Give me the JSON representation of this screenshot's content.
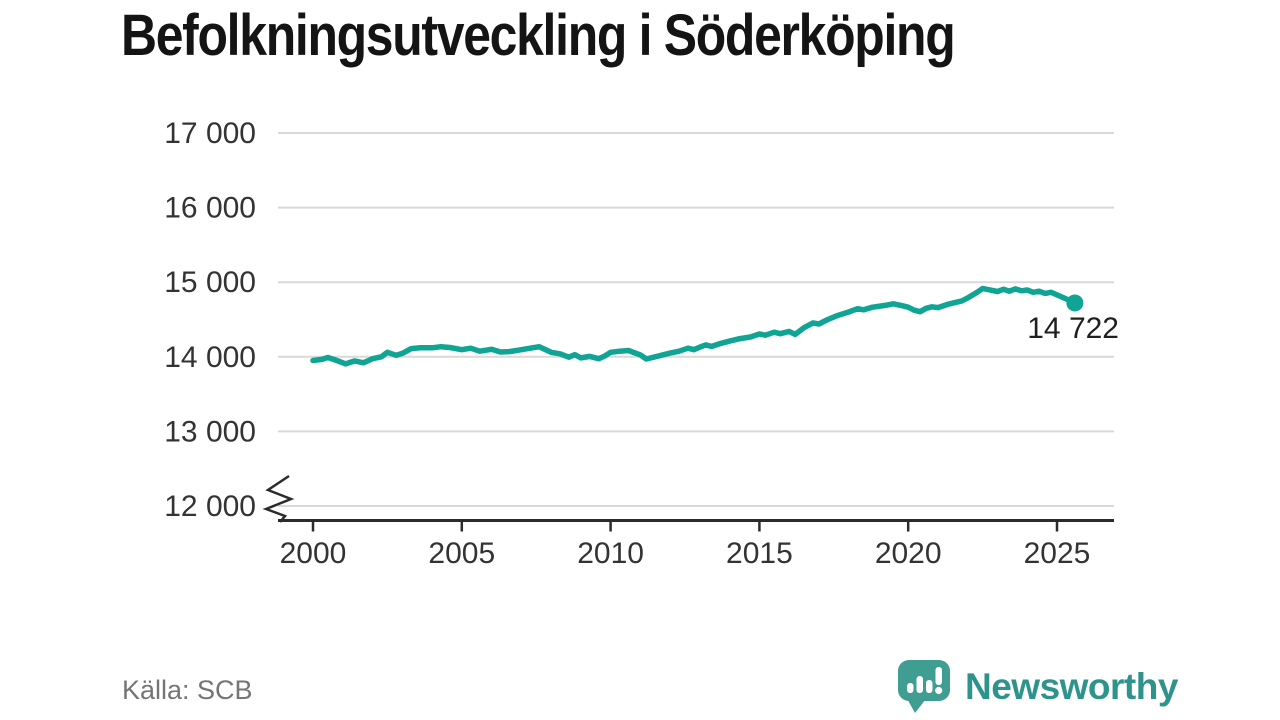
{
  "chart_data": {
    "type": "line",
    "title": "Befolkningsutveckling i Söderköping",
    "xlabel": "",
    "ylabel": "",
    "ylim": [
      12000,
      17000
    ],
    "axis_break_at_bottom": true,
    "grid": true,
    "y_ticks": [
      {
        "value": 17000,
        "label": "17 000"
      },
      {
        "value": 16000,
        "label": "16 000"
      },
      {
        "value": 15000,
        "label": "15 000"
      },
      {
        "value": 14000,
        "label": "14 000"
      },
      {
        "value": 13000,
        "label": "13 000"
      },
      {
        "value": 12000,
        "label": "12 000"
      }
    ],
    "x_ticks": [
      {
        "value": 2000,
        "label": "2000"
      },
      {
        "value": 2005,
        "label": "2005"
      },
      {
        "value": 2010,
        "label": "2010"
      },
      {
        "value": 2015,
        "label": "2015"
      },
      {
        "value": 2020,
        "label": "2020"
      },
      {
        "value": 2025,
        "label": "2025"
      }
    ],
    "x": [
      2000.0,
      2000.3,
      2000.5,
      2000.8,
      2001.1,
      2001.4,
      2001.7,
      2002.0,
      2002.3,
      2002.5,
      2002.8,
      2003.0,
      2003.3,
      2003.6,
      2004.0,
      2004.3,
      2004.6,
      2005.0,
      2005.3,
      2005.6,
      2006.0,
      2006.3,
      2006.6,
      2007.0,
      2007.3,
      2007.6,
      2008.0,
      2008.3,
      2008.6,
      2008.8,
      2009.0,
      2009.3,
      2009.6,
      2009.8,
      2010.0,
      2010.3,
      2010.6,
      2011.0,
      2011.2,
      2011.5,
      2011.8,
      2012.0,
      2012.3,
      2012.6,
      2012.8,
      2013.0,
      2013.2,
      2013.4,
      2013.7,
      2014.0,
      2014.3,
      2014.7,
      2015.0,
      2015.2,
      2015.5,
      2015.7,
      2016.0,
      2016.2,
      2016.5,
      2016.8,
      2017.0,
      2017.3,
      2017.6,
      2018.0,
      2018.3,
      2018.5,
      2018.8,
      2019.0,
      2019.3,
      2019.5,
      2019.8,
      2020.0,
      2020.2,
      2020.4,
      2020.6,
      2020.8,
      2021.0,
      2021.3,
      2021.5,
      2021.8,
      2022.0,
      2022.3,
      2022.5,
      2022.7,
      2023.0,
      2023.2,
      2023.4,
      2023.6,
      2023.8,
      2024.0,
      2024.2,
      2024.4,
      2024.6,
      2024.8,
      2025.0,
      2025.2,
      2025.4,
      2025.6
    ],
    "values": [
      13950,
      13965,
      13990,
      13950,
      13905,
      13945,
      13920,
      13975,
      14000,
      14060,
      14020,
      14045,
      14110,
      14120,
      14120,
      14135,
      14125,
      14095,
      14115,
      14075,
      14100,
      14065,
      14070,
      14095,
      14115,
      14135,
      14060,
      14040,
      13995,
      14030,
      13985,
      14005,
      13975,
      14010,
      14060,
      14075,
      14085,
      14025,
      13970,
      14000,
      14030,
      14050,
      14075,
      14115,
      14095,
      14130,
      14160,
      14140,
      14180,
      14210,
      14240,
      14265,
      14305,
      14290,
      14330,
      14310,
      14340,
      14300,
      14390,
      14455,
      14440,
      14500,
      14550,
      14600,
      14645,
      14630,
      14665,
      14675,
      14695,
      14710,
      14685,
      14665,
      14625,
      14605,
      14650,
      14670,
      14660,
      14700,
      14720,
      14750,
      14790,
      14860,
      14915,
      14900,
      14875,
      14905,
      14880,
      14910,
      14885,
      14895,
      14865,
      14880,
      14850,
      14865,
      14830,
      14795,
      14760,
      14722
    ],
    "latest_point": {
      "x": 2025.6,
      "value": 14722,
      "label": "14 722"
    },
    "colors": {
      "line": "#10a494",
      "grid": "#d9d9d9",
      "axis": "#2b2b2b",
      "tick_text": "#333333",
      "annotation_text": "#1f1f1f"
    },
    "legend": null
  },
  "footer": {
    "source": "Källa: SCB"
  },
  "branding": {
    "name": "Newsworthy",
    "icon": "bar-chart-speech-bubble-icon",
    "icon_color": "#3f9d92",
    "wordmark_color": "#2e948b"
  }
}
